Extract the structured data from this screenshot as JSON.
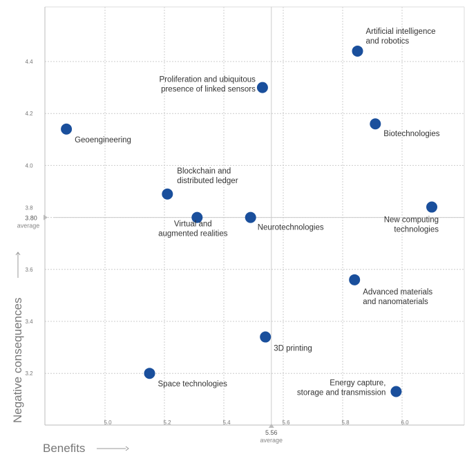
{
  "chart_data": {
    "type": "scatter",
    "xlabel": "Benefits",
    "ylabel": "Negative consequences",
    "xlim": [
      4.8,
      6.21
    ],
    "ylim": [
      3.0,
      4.61
    ],
    "xticks": [
      "5.0",
      "5.2",
      "5.4",
      "5.6",
      "5.8",
      "6.0"
    ],
    "yticks": [
      "3.2",
      "3.4",
      "3.6",
      "3.8",
      "4.0",
      "4.2",
      "4.4"
    ],
    "grid": true,
    "point_color": "#1a4f9c",
    "averages": {
      "x": {
        "value": "5.56",
        "label": "average"
      },
      "y": {
        "value": "3.80",
        "label": "average"
      }
    },
    "points": [
      {
        "label": [
          "Artificial intelligence",
          "and robotics"
        ],
        "x": 5.85,
        "y": 4.44
      },
      {
        "label": [
          "Proliferation and ubiquitous",
          "presence of linked sensors"
        ],
        "x": 5.53,
        "y": 4.3
      },
      {
        "label": [
          "Biotechnologies"
        ],
        "x": 5.91,
        "y": 4.16
      },
      {
        "label": [
          "Geoengineering"
        ],
        "x": 4.87,
        "y": 4.14
      },
      {
        "label": [
          "Blockchain and",
          "distributed ledger"
        ],
        "x": 5.21,
        "y": 3.89
      },
      {
        "label": [
          "New computing",
          "technologies"
        ],
        "x": 6.1,
        "y": 3.84
      },
      {
        "label": [
          "Neurotechnologies"
        ],
        "x": 5.49,
        "y": 3.8
      },
      {
        "label": [
          "Virtual and",
          "augmented realities"
        ],
        "x": 5.31,
        "y": 3.8
      },
      {
        "label": [
          "Advanced materials",
          "and nanomaterials"
        ],
        "x": 5.84,
        "y": 3.56
      },
      {
        "label": [
          "3D printing"
        ],
        "x": 5.54,
        "y": 3.34
      },
      {
        "label": [
          "Space technologies"
        ],
        "x": 5.15,
        "y": 3.2
      },
      {
        "label": [
          "Energy capture,",
          "storage and transmission"
        ],
        "x": 5.98,
        "y": 3.13
      }
    ]
  }
}
